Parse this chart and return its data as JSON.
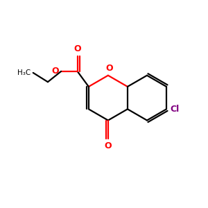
{
  "bg_color": "#ffffff",
  "bond_color": "#000000",
  "o_color": "#ff0000",
  "cl_color": "#800080",
  "line_width": 1.6,
  "figsize": [
    3.0,
    3.0
  ],
  "dpi": 100,
  "xlim": [
    0,
    10
  ],
  "ylim": [
    0,
    10
  ]
}
